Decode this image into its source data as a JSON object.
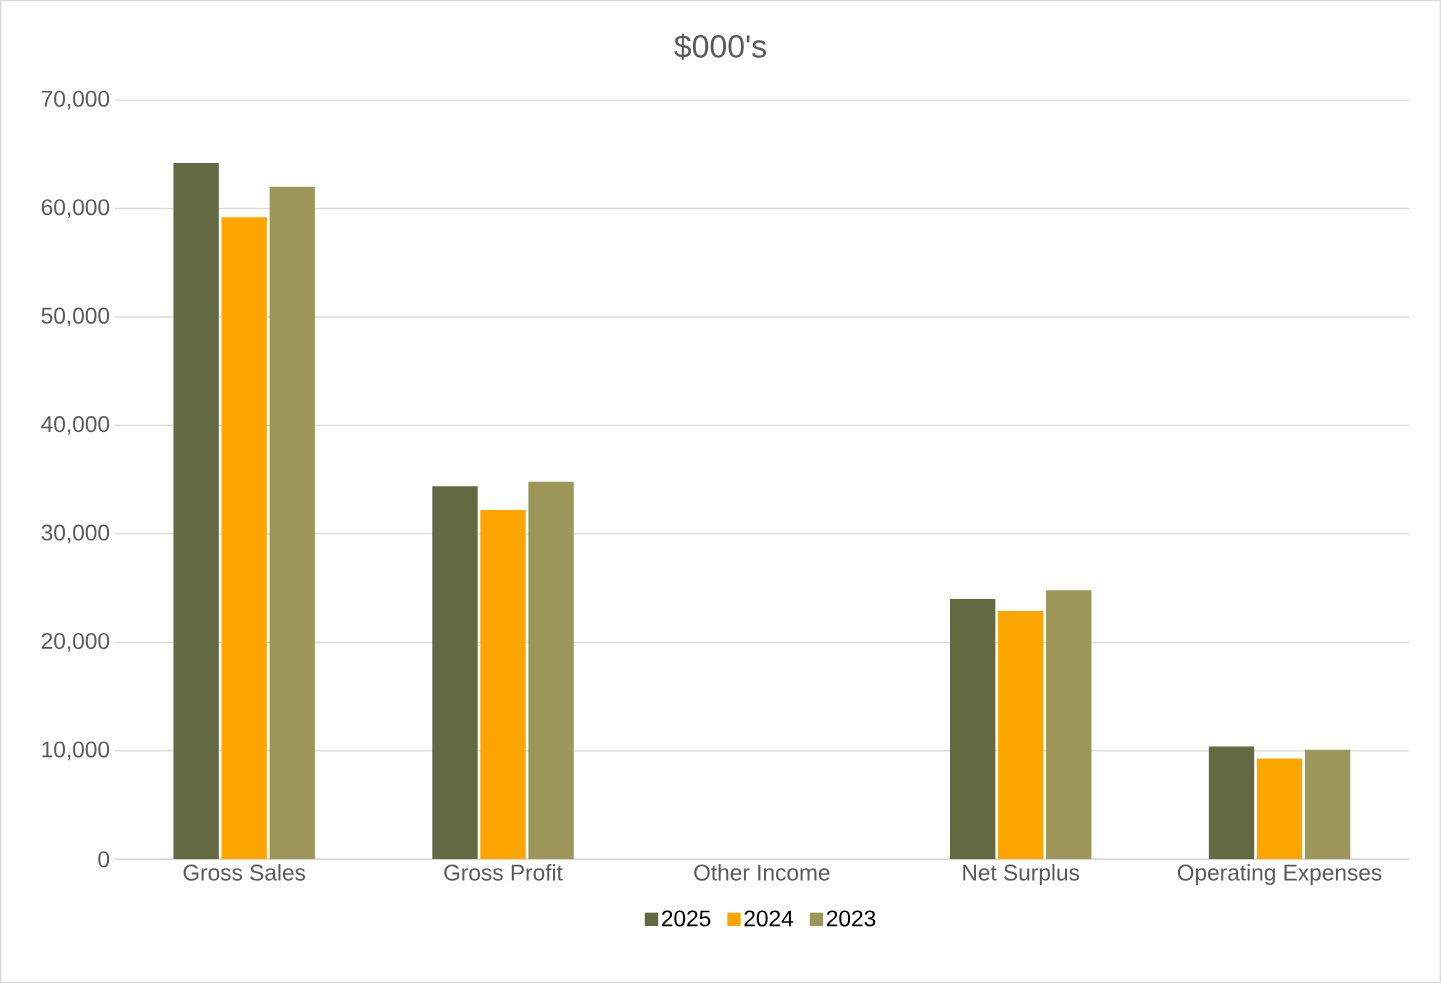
{
  "chart_data": {
    "type": "bar",
    "title": "$000's",
    "categories": [
      "Gross Sales",
      "Gross Profit",
      "Other Income",
      "Net Surplus",
      "Operating Expenses"
    ],
    "series": [
      {
        "name": "2025",
        "color": "#636940",
        "values": [
          64200,
          34400,
          0,
          24000,
          10400
        ]
      },
      {
        "name": "2024",
        "color": "#ffa500",
        "values": [
          59200,
          32200,
          0,
          22900,
          9300
        ]
      },
      {
        "name": "2023",
        "color": "#9c9659",
        "values": [
          62000,
          34800,
          0,
          24800,
          10100
        ]
      }
    ],
    "ylim": [
      0,
      70000
    ],
    "yticks": [
      {
        "value": 0,
        "label": "0"
      },
      {
        "value": 10000,
        "label": "10,000"
      },
      {
        "value": 20000,
        "label": "20,000"
      },
      {
        "value": 30000,
        "label": "30,000"
      },
      {
        "value": 40000,
        "label": "40,000"
      },
      {
        "value": 50000,
        "label": "50,000"
      },
      {
        "value": 60000,
        "label": "60,000"
      },
      {
        "value": 70000,
        "label": "70,000"
      }
    ],
    "grid": "y",
    "legend": "bottom"
  }
}
